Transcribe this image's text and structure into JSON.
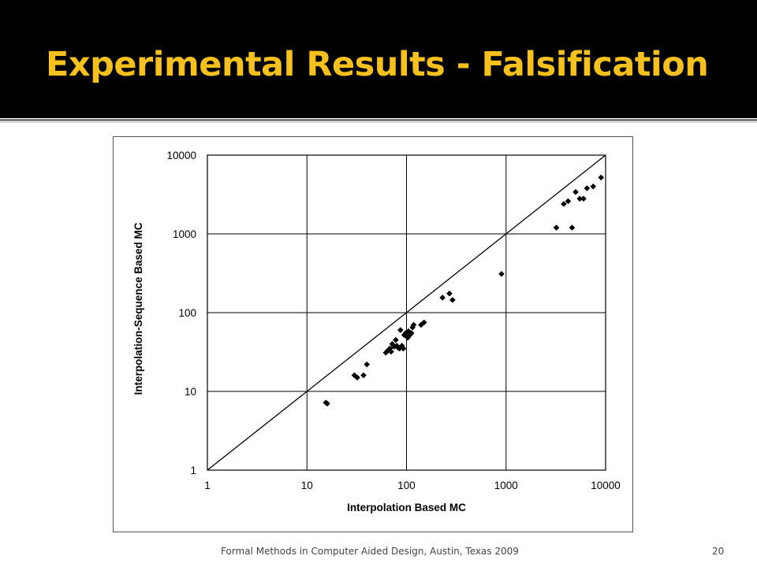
{
  "slide": {
    "title": "Experimental Results - Falsification",
    "footer": "Formal Methods in Computer Aided Design, Austin, Texas 2009",
    "page_number": "20",
    "colors": {
      "title_bar": "#000000",
      "title_text": "#f7c11d",
      "marker": "#000000"
    }
  },
  "chart_data": {
    "type": "scatter",
    "title": "",
    "xlabel": "Interpolation Based MC",
    "ylabel": "Interpolation-Sequence Based MC",
    "x_scale": "log",
    "y_scale": "log",
    "xlim": [
      1,
      10000
    ],
    "ylim": [
      1,
      10000
    ],
    "x_ticks": [
      "1",
      "10",
      "100",
      "1000",
      "10000"
    ],
    "y_ticks": [
      "1",
      "10",
      "100",
      "1000",
      "10000"
    ],
    "grid": true,
    "legend": "none",
    "reference_line": "y = x",
    "marker": "diamond",
    "series": [
      {
        "points": [
          [
            15.5,
            7.2
          ],
          [
            16,
            7
          ],
          [
            30,
            16
          ],
          [
            32,
            15
          ],
          [
            37,
            16
          ],
          [
            40,
            22
          ],
          [
            62,
            31
          ],
          [
            65,
            33
          ],
          [
            68,
            35
          ],
          [
            70,
            32
          ],
          [
            72,
            40
          ],
          [
            75,
            37
          ],
          [
            78,
            45
          ],
          [
            80,
            38
          ],
          [
            82,
            36
          ],
          [
            85,
            35
          ],
          [
            87,
            60
          ],
          [
            90,
            38
          ],
          [
            93,
            35
          ],
          [
            95,
            52
          ],
          [
            98,
            55
          ],
          [
            100,
            50
          ],
          [
            103,
            48
          ],
          [
            105,
            58
          ],
          [
            108,
            52
          ],
          [
            112,
            55
          ],
          [
            115,
            65
          ],
          [
            118,
            70
          ],
          [
            140,
            70
          ],
          [
            150,
            75
          ],
          [
            230,
            155
          ],
          [
            270,
            175
          ],
          [
            290,
            145
          ],
          [
            900,
            310
          ],
          [
            3200,
            1200
          ],
          [
            3800,
            2400
          ],
          [
            4200,
            2600
          ],
          [
            4600,
            1200
          ],
          [
            5000,
            3400
          ],
          [
            5500,
            2800
          ],
          [
            6000,
            2800
          ],
          [
            6500,
            3800
          ],
          [
            7500,
            4000
          ],
          [
            9000,
            5200
          ]
        ]
      }
    ]
  }
}
